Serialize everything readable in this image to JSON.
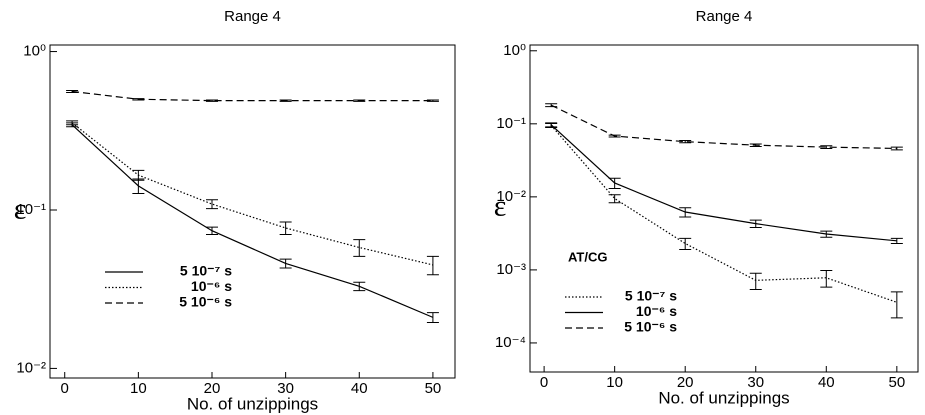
{
  "chart_data": [
    {
      "type": "line",
      "title": "Range 4",
      "x_label": "No. of unzippings",
      "y_label": "ε",
      "log_y": true,
      "legend": "lower left",
      "xlim": [
        -2,
        53
      ],
      "xticks": [
        0,
        10,
        20,
        30,
        40,
        50
      ],
      "ylim": [
        0.0087,
        1.1
      ],
      "yticks": [
        {
          "value": 0.01,
          "label": "10⁻²"
        },
        {
          "value": 0.1,
          "label": "10⁻¹"
        },
        {
          "value": 1,
          "label": "10⁰"
        }
      ],
      "x": [
        1,
        10,
        20,
        30,
        40,
        50
      ],
      "series": [
        {
          "name": "5 10⁻⁷ s",
          "color": "#000000",
          "dash": "solid",
          "values": [
            0.345,
            0.142,
            0.074,
            0.046,
            0.033,
            0.021
          ],
          "errors": [
            0.01,
            0.015,
            0.004,
            0.003,
            0.002,
            0.0015
          ]
        },
        {
          "name": "10⁻⁶ s",
          "color": "#000000",
          "dash": "dotted",
          "values": [
            0.355,
            0.166,
            0.109,
            0.077,
            0.058,
            0.045
          ],
          "errors": [
            0.01,
            0.012,
            0.007,
            0.007,
            0.007,
            0.006
          ]
        },
        {
          "name": "5 10⁻⁶ s",
          "color": "#000000",
          "dash": "dashed",
          "values": [
            0.56,
            0.5,
            0.49,
            0.49,
            0.49,
            0.49
          ],
          "errors": [
            0.008,
            0.005,
            0.005,
            0.005,
            0.005,
            0.005
          ]
        }
      ]
    },
    {
      "type": "line",
      "title": "Range 4",
      "x_label": "No. of unzippings",
      "y_label": "ε",
      "log_y": true,
      "legend": "lower left",
      "annotation": "AT/CG",
      "xlim": [
        -2,
        53
      ],
      "xticks": [
        0,
        10,
        20,
        30,
        40,
        50
      ],
      "ylim": [
        4e-05,
        1.2
      ],
      "yticks": [
        {
          "value": 0.0001,
          "label": "10⁻⁴"
        },
        {
          "value": 0.001,
          "label": "10⁻³"
        },
        {
          "value": 0.01,
          "label": "10⁻²"
        },
        {
          "value": 0.1,
          "label": "10⁻¹"
        },
        {
          "value": 1,
          "label": "10⁰"
        }
      ],
      "x": [
        1,
        10,
        20,
        30,
        40,
        50
      ],
      "series": [
        {
          "name": "5 10⁻⁷ s",
          "color": "#000000",
          "dash": "dotted",
          "values": [
            0.095,
            0.0095,
            0.0023,
            0.00072,
            0.00078,
            0.00036
          ],
          "errors": [
            0.006,
            0.0012,
            0.0004,
            0.00018,
            0.0002,
            0.00014
          ]
        },
        {
          "name": "10⁻⁶ s",
          "color": "#000000",
          "dash": "solid",
          "values": [
            0.097,
            0.0155,
            0.0062,
            0.0043,
            0.0031,
            0.0025
          ],
          "errors": [
            0.006,
            0.0025,
            0.0009,
            0.0005,
            0.0003,
            0.0002
          ]
        },
        {
          "name": "5 10⁻⁶ s",
          "color": "#000000",
          "dash": "dashed",
          "values": [
            0.18,
            0.068,
            0.057,
            0.051,
            0.048,
            0.046
          ],
          "errors": [
            0.008,
            0.002,
            0.002,
            0.002,
            0.002,
            0.002
          ]
        }
      ]
    }
  ]
}
